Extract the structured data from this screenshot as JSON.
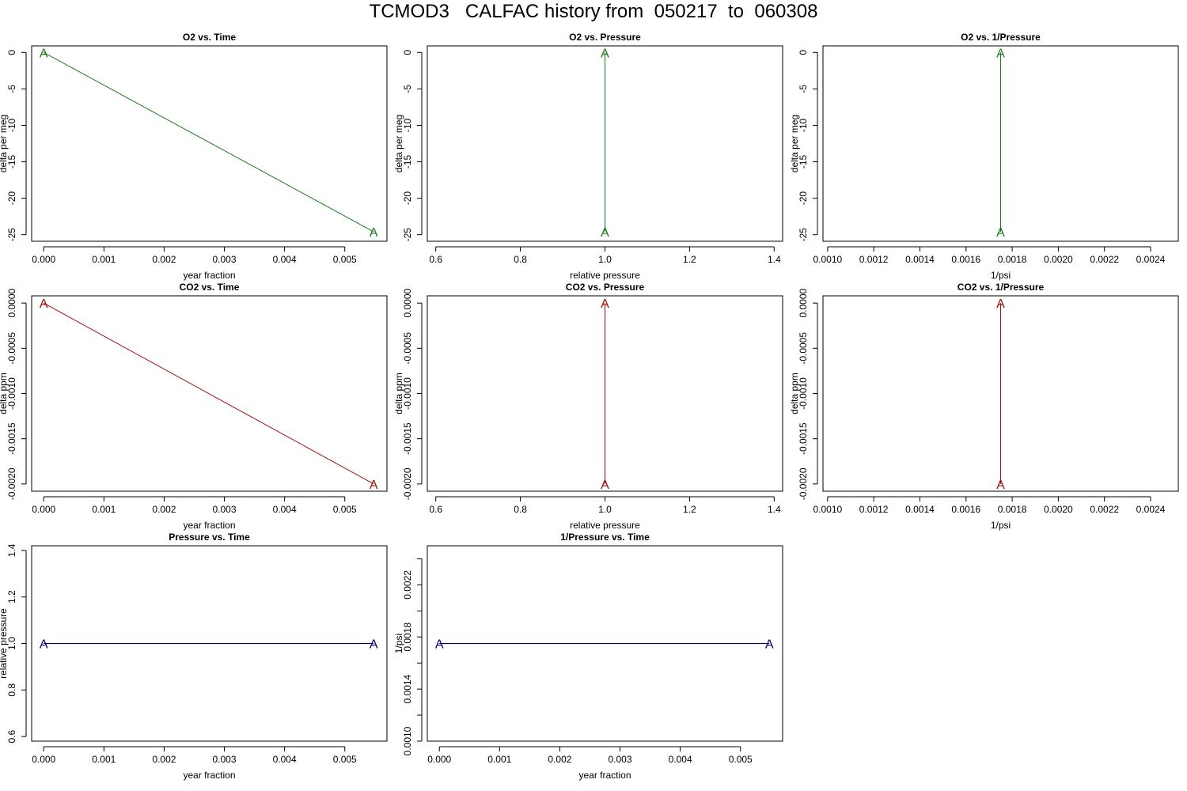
{
  "title": "TCMOD3   CALFAC history from  050217  to  060308",
  "colors": {
    "o2": "#1a7a1a",
    "co2": "#a01010",
    "pressure": "#00007a",
    "axis": "#000000"
  },
  "marker_label": "A",
  "chart_data": [
    {
      "type": "line",
      "title": "O2 vs. Time",
      "xlabel": "year fraction",
      "ylabel": "delta per meg",
      "xlim": [
        -0.0002,
        0.0057
      ],
      "ylim": [
        -25.9,
        0.9
      ],
      "xticks": [
        0,
        0.001,
        0.002,
        0.003,
        0.004,
        0.005
      ],
      "xtick_labels": [
        "0.000",
        "0.001",
        "0.002",
        "0.003",
        "0.004",
        "0.005"
      ],
      "yticks": [
        0,
        -5,
        -10,
        -15,
        -20,
        -25
      ],
      "ytick_labels": [
        "0",
        "-5",
        "-10",
        "-15",
        "-20",
        "-25"
      ],
      "series": [
        {
          "color_key": "o2",
          "x": [
            0,
            0.00548
          ],
          "y": [
            0,
            -24.6
          ]
        }
      ]
    },
    {
      "type": "line",
      "title": "O2 vs. Pressure",
      "xlabel": "relative pressure",
      "ylabel": "delta per meg",
      "xlim": [
        0.58,
        1.42
      ],
      "ylim": [
        -25.9,
        0.9
      ],
      "xticks": [
        0.6,
        0.8,
        1.0,
        1.2,
        1.4
      ],
      "xtick_labels": [
        "0.6",
        "0.8",
        "1.0",
        "1.2",
        "1.4"
      ],
      "yticks": [
        0,
        -5,
        -10,
        -15,
        -20,
        -25
      ],
      "ytick_labels": [
        "0",
        "-5",
        "-10",
        "-15",
        "-20",
        "-25"
      ],
      "series": [
        {
          "color_key": "o2",
          "x": [
            1.0,
            1.0
          ],
          "y": [
            0,
            -24.6
          ]
        }
      ]
    },
    {
      "type": "line",
      "title": "O2 vs. 1/Pressure",
      "xlabel": "1/psi",
      "ylabel": "delta per meg",
      "xlim": [
        0.00098,
        0.00252
      ],
      "ylim": [
        -25.9,
        0.9
      ],
      "xticks": [
        0.001,
        0.0012,
        0.0014,
        0.0016,
        0.0018,
        0.002,
        0.0022,
        0.0024
      ],
      "xtick_labels": [
        "0.0010",
        "0.0012",
        "0.0014",
        "0.0016",
        "0.0018",
        "0.0020",
        "0.0022",
        "0.0024"
      ],
      "yticks": [
        0,
        -5,
        -10,
        -15,
        -20,
        -25
      ],
      "ytick_labels": [
        "0",
        "-5",
        "-10",
        "-15",
        "-20",
        "-25"
      ],
      "series": [
        {
          "color_key": "o2",
          "x": [
            0.00175,
            0.00175
          ],
          "y": [
            0,
            -24.6
          ]
        }
      ]
    },
    {
      "type": "line",
      "title": "CO2 vs. Time",
      "xlabel": "year fraction",
      "ylabel": "delta ppm",
      "xlim": [
        -0.0002,
        0.0057
      ],
      "ylim": [
        -0.00208,
        8e-05
      ],
      "xticks": [
        0,
        0.001,
        0.002,
        0.003,
        0.004,
        0.005
      ],
      "xtick_labels": [
        "0.000",
        "0.001",
        "0.002",
        "0.003",
        "0.004",
        "0.005"
      ],
      "yticks": [
        0,
        -0.0005,
        -0.001,
        -0.0015,
        -0.002
      ],
      "ytick_labels": [
        "0.0000",
        "-0.0005",
        "-0.0010",
        "-0.0015",
        "-0.0020"
      ],
      "series": [
        {
          "color_key": "co2",
          "x": [
            0,
            0.00548
          ],
          "y": [
            0,
            -0.002
          ]
        }
      ]
    },
    {
      "type": "line",
      "title": "CO2 vs. Pressure",
      "xlabel": "relative pressure",
      "ylabel": "delta ppm",
      "xlim": [
        0.58,
        1.42
      ],
      "ylim": [
        -0.00208,
        8e-05
      ],
      "xticks": [
        0.6,
        0.8,
        1.0,
        1.2,
        1.4
      ],
      "xtick_labels": [
        "0.6",
        "0.8",
        "1.0",
        "1.2",
        "1.4"
      ],
      "yticks": [
        0,
        -0.0005,
        -0.001,
        -0.0015,
        -0.002
      ],
      "ytick_labels": [
        "0.0000",
        "-0.0005",
        "-0.0010",
        "-0.0015",
        "-0.0020"
      ],
      "series": [
        {
          "color_key": "co2",
          "x": [
            1.0,
            1.0
          ],
          "y": [
            0,
            -0.002
          ]
        }
      ]
    },
    {
      "type": "line",
      "title": "CO2 vs. 1/Pressure",
      "xlabel": "1/psi",
      "ylabel": "delta ppm",
      "xlim": [
        0.00098,
        0.00252
      ],
      "ylim": [
        -0.00208,
        8e-05
      ],
      "xticks": [
        0.001,
        0.0012,
        0.0014,
        0.0016,
        0.0018,
        0.002,
        0.0022,
        0.0024
      ],
      "xtick_labels": [
        "0.0010",
        "0.0012",
        "0.0014",
        "0.0016",
        "0.0018",
        "0.0020",
        "0.0022",
        "0.0024"
      ],
      "yticks": [
        0,
        -0.0005,
        -0.001,
        -0.0015,
        -0.002
      ],
      "ytick_labels": [
        "0.0000",
        "-0.0005",
        "-0.0010",
        "-0.0015",
        "-0.0020"
      ],
      "series": [
        {
          "color_key": "co2",
          "x": [
            0.00175,
            0.00175
          ],
          "y": [
            0,
            -0.002
          ]
        }
      ]
    },
    {
      "type": "line",
      "title": "Pressure vs. Time",
      "xlabel": "year fraction",
      "ylabel": "relative pressure",
      "xlim": [
        -0.0002,
        0.0057
      ],
      "ylim": [
        0.58,
        1.42
      ],
      "xticks": [
        0,
        0.001,
        0.002,
        0.003,
        0.004,
        0.005
      ],
      "xtick_labels": [
        "0.000",
        "0.001",
        "0.002",
        "0.003",
        "0.004",
        "0.005"
      ],
      "yticks": [
        0.6,
        0.8,
        1.0,
        1.2,
        1.4
      ],
      "ytick_labels": [
        "0.6",
        "0.8",
        "1.0",
        "1.2",
        "1.4"
      ],
      "series": [
        {
          "color_key": "pressure",
          "x": [
            0,
            0.00548
          ],
          "y": [
            1.0,
            1.0
          ]
        }
      ]
    },
    {
      "type": "line",
      "title": "1/Pressure vs. Time",
      "xlabel": "year fraction",
      "ylabel": "1/psi",
      "xlim": [
        -0.0002,
        0.0057
      ],
      "ylim": [
        0.001,
        0.0025
      ],
      "xticks": [
        0,
        0.001,
        0.002,
        0.003,
        0.004,
        0.005
      ],
      "xtick_labels": [
        "0.000",
        "0.001",
        "0.002",
        "0.003",
        "0.004",
        "0.005"
      ],
      "yticks": [
        0.001,
        0.0012,
        0.0014,
        0.0016,
        0.0018,
        0.002,
        0.0022,
        0.0024
      ],
      "ytick_labels": [
        "0.0010",
        "",
        "0.0014",
        "",
        "0.0018",
        "",
        "0.0022",
        ""
      ],
      "series": [
        {
          "color_key": "pressure",
          "x": [
            0,
            0.00548
          ],
          "y": [
            0.00175,
            0.00175
          ]
        }
      ]
    }
  ]
}
